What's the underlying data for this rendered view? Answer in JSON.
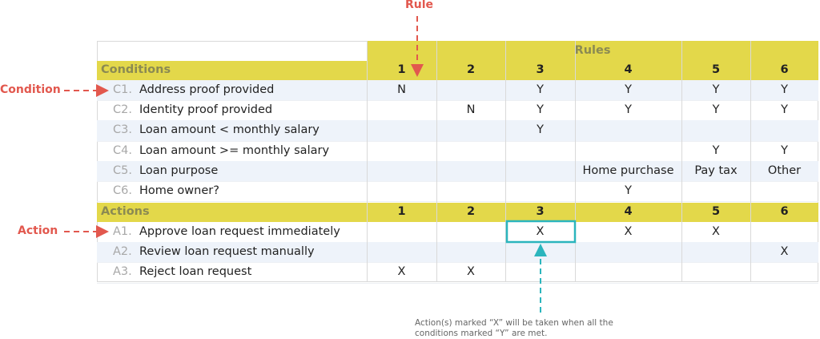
{
  "annotations": {
    "rule": "Rule",
    "condition": "Condition",
    "action": "Action",
    "note": [
      "Action(s) marked “X” will be taken when all the",
      "conditions marked “Y” are met."
    ]
  },
  "table": {
    "rules_header": "Rules",
    "conditions_header": "Conditions",
    "actions_header": "Actions",
    "rule_numbers": [
      1,
      2,
      3,
      4,
      5,
      6
    ],
    "conditions": [
      {
        "code": "C1.",
        "label": "Address proof provided",
        "cells": [
          "N",
          null,
          "Y",
          "Y",
          "Y",
          "Y"
        ]
      },
      {
        "code": "C2.",
        "label": "Identity proof provided",
        "cells": [
          null,
          "N",
          "Y",
          "Y",
          "Y",
          "Y"
        ]
      },
      {
        "code": "C3.",
        "label": "Loan amount < monthly salary",
        "cells": [
          null,
          null,
          "Y",
          null,
          null,
          null
        ]
      },
      {
        "code": "C4.",
        "label": "Loan amount >= monthly salary",
        "cells": [
          null,
          null,
          null,
          null,
          "Y",
          "Y"
        ]
      },
      {
        "code": "C5.",
        "label": "Loan purpose",
        "cells": [
          null,
          null,
          null,
          "Home purchase",
          "Pay tax",
          "Other"
        ]
      },
      {
        "code": "C6.",
        "label": "Home owner?",
        "cells": [
          null,
          null,
          null,
          "Y",
          null,
          null
        ]
      }
    ],
    "actions": [
      {
        "code": "A1.",
        "label": "Approve loan request immediately",
        "cells": [
          null,
          null,
          "X",
          "X",
          "X",
          null
        ]
      },
      {
        "code": "A2.",
        "label": "Review loan request manually",
        "cells": [
          null,
          null,
          null,
          null,
          null,
          "X"
        ]
      },
      {
        "code": "A3.",
        "label": "Reject loan request",
        "cells": [
          "X",
          "X",
          null,
          null,
          null,
          null
        ]
      }
    ]
  }
}
